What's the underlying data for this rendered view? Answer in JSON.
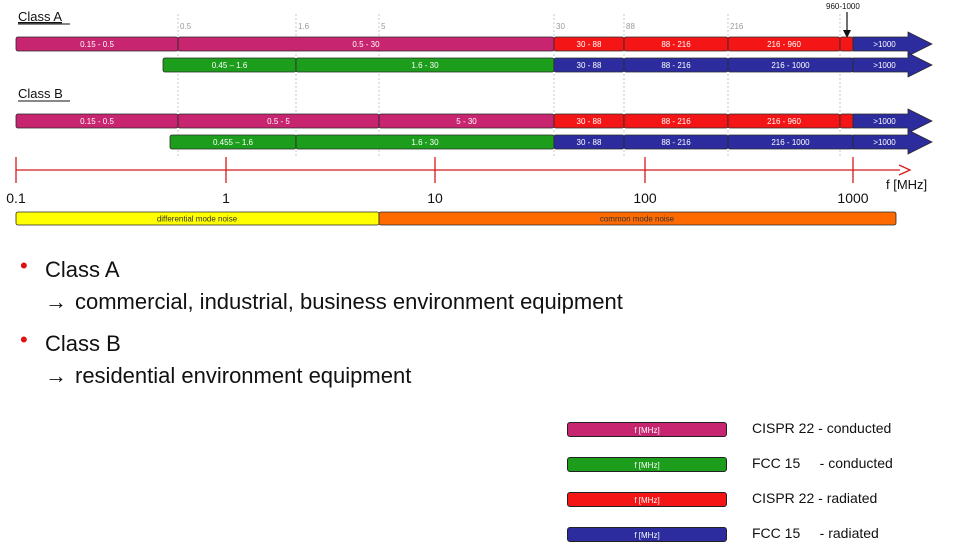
{
  "colors": {
    "cispr_conducted": "#c7256f",
    "fcc_conducted": "#1c9d1c",
    "cispr_radiated": "#f41616",
    "fcc_radiated": "#2c2c9e",
    "axis": "#d71a1a",
    "differential": "#ffff00",
    "common": "#ff6a00"
  },
  "diagram": {
    "class_a_label": "Class A",
    "class_b_label": "Class B",
    "top_ticks": [
      "0.5",
      "1.6",
      "5",
      "30",
      "88",
      "216"
    ],
    "callout": "960-1000",
    "class_a": {
      "cispr_conducted": [
        "0.15 - 0.5",
        "0.5 - 30"
      ],
      "cispr_radiated": [
        "30 - 88",
        "88 - 216",
        "216 - 960",
        ">1000"
      ],
      "fcc_conducted": [
        "0.45 – 1.6",
        "1.6 - 30"
      ],
      "fcc_radiated": [
        "30 - 88",
        "88 - 216",
        "216 - 1000",
        ">1000"
      ]
    },
    "class_b": {
      "cispr_conducted": [
        "0.15 - 0.5",
        "0.5 - 5",
        "5 - 30"
      ],
      "cispr_radiated": [
        "30 - 88",
        "88 - 216",
        "216 - 960",
        ">1000"
      ],
      "fcc_conducted": [
        "0.455 – 1.6",
        "1.6 - 30"
      ],
      "fcc_radiated": [
        "30 - 88",
        "88 - 216",
        "216 - 1000",
        ">1000"
      ]
    },
    "axis": {
      "ticks": [
        "0.1",
        "1",
        "10",
        "100",
        "1000"
      ],
      "unit": "f [MHz]"
    },
    "noise": {
      "differential": "differential mode noise",
      "common": "common mode noise"
    }
  },
  "bullets": [
    {
      "title": "Class A",
      "description": "commercial, industrial, business environment equipment"
    },
    {
      "title": "Class B",
      "description": "residential environment equipment"
    }
  ],
  "bullet_arrow": "→",
  "legend": [
    {
      "swatch_text": "f [MHz]",
      "label": "CISPR 22 - conducted",
      "color_key": "cispr_conducted"
    },
    {
      "swatch_text": "f [MHz]",
      "label": "FCC 15     - conducted",
      "color_key": "fcc_conducted"
    },
    {
      "swatch_text": "f [MHz]",
      "label": "CISPR 22 - radiated",
      "color_key": "cispr_radiated"
    },
    {
      "swatch_text": "f [MHz]",
      "label": "FCC 15     - radiated",
      "color_key": "fcc_radiated"
    }
  ]
}
